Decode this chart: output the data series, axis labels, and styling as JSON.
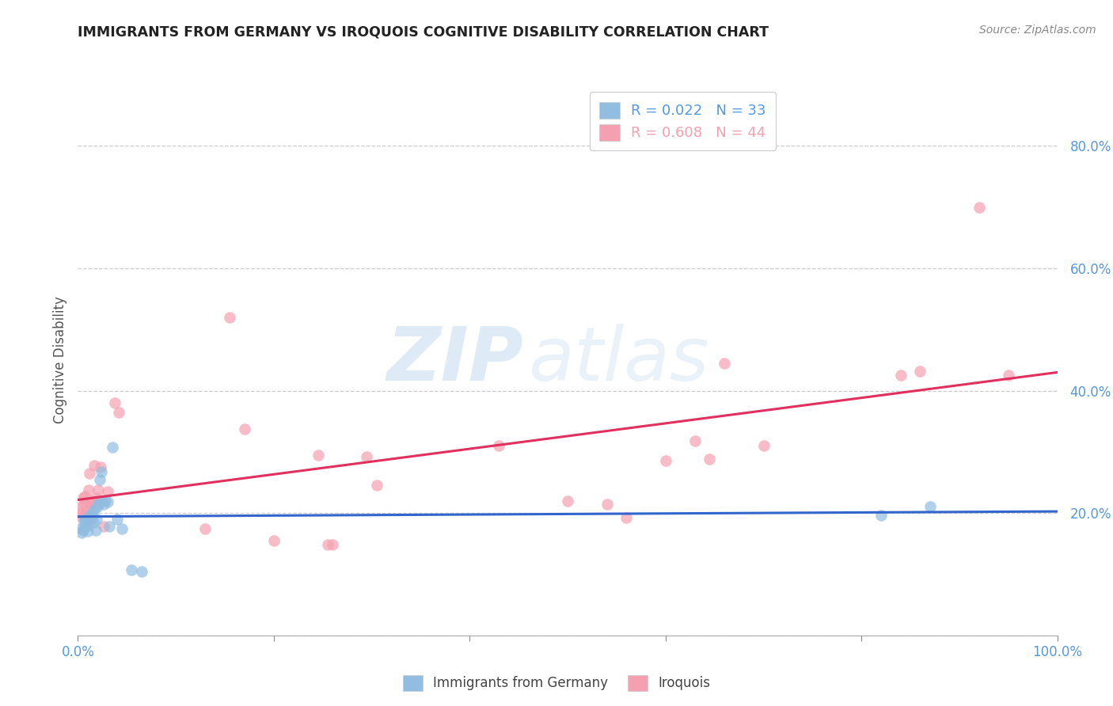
{
  "title": "IMMIGRANTS FROM GERMANY VS IROQUOIS COGNITIVE DISABILITY CORRELATION CHART",
  "source": "Source: ZipAtlas.com",
  "ylabel": "Cognitive Disability",
  "legend_label1": "R = 0.022   N = 33",
  "legend_label2": "R = 0.608   N = 44",
  "color_blue": "#91bde0",
  "color_pink": "#f5a0b0",
  "line_color_blue": "#3366cc",
  "line_color_pink": "#e03060",
  "watermark_zip": "ZIP",
  "watermark_atlas": "atlas",
  "blue_x": [
    0.003,
    0.004,
    0.005,
    0.006,
    0.007,
    0.008,
    0.009,
    0.01,
    0.011,
    0.012,
    0.013,
    0.014,
    0.015,
    0.016,
    0.017,
    0.018,
    0.019,
    0.02,
    0.021,
    0.022,
    0.024,
    0.025,
    0.026,
    0.028,
    0.03,
    0.032,
    0.035,
    0.04,
    0.045,
    0.055,
    0.065,
    0.82,
    0.87
  ],
  "blue_y": [
    0.175,
    0.168,
    0.172,
    0.185,
    0.188,
    0.178,
    0.18,
    0.17,
    0.192,
    0.195,
    0.188,
    0.2,
    0.195,
    0.185,
    0.205,
    0.172,
    0.19,
    0.21,
    0.215,
    0.255,
    0.268,
    0.22,
    0.215,
    0.22,
    0.218,
    0.178,
    0.308,
    0.19,
    0.175,
    0.107,
    0.105,
    0.196,
    0.21
  ],
  "pink_x": [
    0.002,
    0.003,
    0.004,
    0.005,
    0.006,
    0.007,
    0.008,
    0.009,
    0.01,
    0.011,
    0.012,
    0.013,
    0.014,
    0.015,
    0.017,
    0.019,
    0.021,
    0.023,
    0.026,
    0.03,
    0.038,
    0.042,
    0.13,
    0.155,
    0.17,
    0.2,
    0.245,
    0.255,
    0.26,
    0.295,
    0.305,
    0.43,
    0.5,
    0.54,
    0.56,
    0.6,
    0.63,
    0.645,
    0.66,
    0.7,
    0.84,
    0.86,
    0.92,
    0.95
  ],
  "pink_y": [
    0.2,
    0.195,
    0.21,
    0.225,
    0.215,
    0.228,
    0.198,
    0.21,
    0.188,
    0.238,
    0.265,
    0.215,
    0.22,
    0.218,
    0.278,
    0.225,
    0.238,
    0.275,
    0.178,
    0.235,
    0.38,
    0.365,
    0.175,
    0.52,
    0.338,
    0.155,
    0.295,
    0.148,
    0.148,
    0.292,
    0.245,
    0.31,
    0.22,
    0.215,
    0.192,
    0.285,
    0.318,
    0.288,
    0.445,
    0.31,
    0.425,
    0.432,
    0.7,
    0.425
  ],
  "xlim": [
    0.0,
    1.0
  ],
  "ylim": [
    0.0,
    0.9
  ],
  "xticks": [
    0.0,
    0.2,
    0.4,
    0.6,
    0.8,
    1.0
  ],
  "yticks": [
    0.0,
    0.2,
    0.4,
    0.6,
    0.8
  ],
  "background_color": "#ffffff",
  "tick_color": "#5599dd",
  "grid_color": "#cccccc",
  "bottom_legend_label1": "Immigrants from Germany",
  "bottom_legend_label2": "Iroquois"
}
